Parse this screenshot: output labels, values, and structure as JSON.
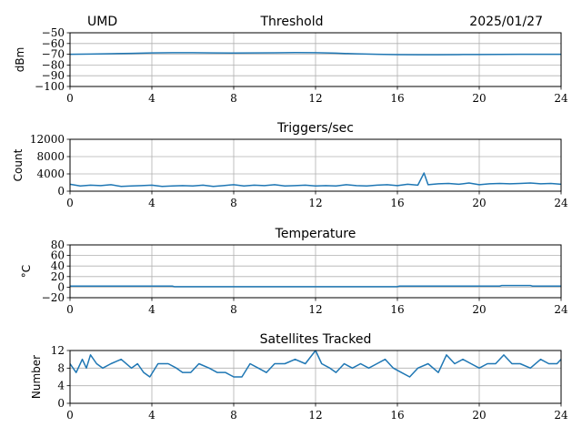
{
  "header": {
    "left": "UMD",
    "center": "Threshold",
    "right": "2025/01/27"
  },
  "colors": {
    "series": "#1f77b4",
    "grid": "#b0b0b0"
  },
  "chart_data": [
    {
      "type": "line",
      "title": "Threshold",
      "ylabel": "dBm",
      "xlim": [
        0,
        24
      ],
      "ylim": [
        -100,
        -50
      ],
      "xticks": [
        0,
        4,
        8,
        12,
        16,
        20,
        24
      ],
      "yticks": [
        -100,
        -90,
        -80,
        -70,
        -60,
        -50
      ],
      "ytick_labels": [
        "−100",
        "−90",
        "−80",
        "−70",
        "−60",
        "−50"
      ],
      "grid": true,
      "series": [
        {
          "x": [
            0,
            1,
            2,
            3,
            4,
            5,
            6,
            7,
            8,
            9,
            10,
            11,
            12,
            13,
            14,
            15,
            16,
            17,
            18,
            19,
            20,
            21,
            22,
            23,
            24
          ],
          "values": [
            -70,
            -69.8,
            -69.5,
            -69.2,
            -68.8,
            -68.5,
            -68.5,
            -68.7,
            -68.9,
            -68.8,
            -68.6,
            -68.4,
            -68.5,
            -69,
            -69.6,
            -70,
            -70.3,
            -70.4,
            -70.4,
            -70.3,
            -70.2,
            -70.1,
            -70,
            -70,
            -70
          ]
        }
      ]
    },
    {
      "type": "line",
      "title": "Triggers/sec",
      "ylabel": "Count",
      "xlim": [
        0,
        24
      ],
      "ylim": [
        0,
        12000
      ],
      "xticks": [
        0,
        4,
        8,
        12,
        16,
        20,
        24
      ],
      "yticks": [
        0,
        4000,
        8000,
        12000
      ],
      "ytick_labels": [
        "0",
        "4000",
        "8000",
        "12000"
      ],
      "grid": true,
      "series": [
        {
          "x": [
            0,
            0.5,
            1,
            1.5,
            2,
            2.5,
            3,
            3.5,
            4,
            4.5,
            5,
            5.5,
            6,
            6.5,
            7,
            7.5,
            8,
            8.5,
            9,
            9.5,
            10,
            10.5,
            11,
            11.5,
            12,
            12.5,
            13,
            13.5,
            14,
            14.5,
            15,
            15.5,
            16,
            16.5,
            17,
            17.3,
            17.5,
            18,
            18.5,
            19,
            19.5,
            20,
            20.5,
            21,
            21.5,
            22,
            22.5,
            23,
            23.5,
            24
          ],
          "values": [
            1600,
            1200,
            1400,
            1300,
            1500,
            1100,
            1200,
            1300,
            1400,
            1100,
            1200,
            1300,
            1200,
            1400,
            1100,
            1300,
            1500,
            1200,
            1400,
            1300,
            1500,
            1200,
            1300,
            1400,
            1200,
            1300,
            1200,
            1500,
            1300,
            1200,
            1400,
            1500,
            1300,
            1600,
            1400,
            4200,
            1500,
            1700,
            1800,
            1600,
            1900,
            1500,
            1700,
            1800,
            1700,
            1800,
            1900,
            1700,
            1800,
            1600
          ]
        }
      ]
    },
    {
      "type": "line",
      "title": "Temperature",
      "ylabel": "°C",
      "xlim": [
        0,
        24
      ],
      "ylim": [
        -20,
        80
      ],
      "xticks": [
        0,
        4,
        8,
        12,
        16,
        20,
        24
      ],
      "yticks": [
        -20,
        0,
        20,
        40,
        60,
        80
      ],
      "ytick_labels": [
        "−20",
        "0",
        "20",
        "40",
        "60",
        "80"
      ],
      "grid": true,
      "series": [
        {
          "x": [
            0,
            2,
            4,
            5,
            5.1,
            8,
            12,
            16,
            16.1,
            20,
            21,
            21.1,
            22.5,
            22.6,
            24
          ],
          "values": [
            2,
            2,
            2,
            2,
            1,
            1,
            1,
            1,
            2,
            2,
            2,
            3,
            3,
            2,
            2
          ]
        }
      ]
    },
    {
      "type": "line",
      "title": "Satellites Tracked",
      "ylabel": "Number",
      "xlim": [
        0,
        24
      ],
      "ylim": [
        0,
        12
      ],
      "xticks": [
        0,
        4,
        8,
        12,
        16,
        20,
        24
      ],
      "yticks": [
        0,
        4,
        8,
        12
      ],
      "ytick_labels": [
        "0",
        "4",
        "8",
        "12"
      ],
      "grid": true,
      "series": [
        {
          "x": [
            0,
            0.3,
            0.6,
            0.8,
            1.0,
            1.3,
            1.6,
            2.0,
            2.5,
            3.0,
            3.3,
            3.6,
            3.9,
            4.3,
            4.8,
            5.2,
            5.5,
            5.9,
            6.3,
            6.8,
            7.2,
            7.6,
            8.0,
            8.4,
            8.8,
            9.2,
            9.6,
            10.0,
            10.5,
            11.0,
            11.5,
            12.0,
            12.3,
            12.7,
            13.0,
            13.4,
            13.8,
            14.2,
            14.6,
            15.0,
            15.4,
            15.8,
            16.2,
            16.6,
            17.0,
            17.5,
            18.0,
            18.4,
            18.8,
            19.2,
            19.6,
            20.0,
            20.4,
            20.8,
            21.2,
            21.6,
            22.0,
            22.5,
            23.0,
            23.4,
            23.8,
            24.0
          ],
          "values": [
            9,
            7,
            10,
            8,
            11,
            9,
            8,
            9,
            10,
            8,
            9,
            7,
            6,
            9,
            9,
            8,
            7,
            7,
            9,
            8,
            7,
            7,
            6,
            6,
            9,
            8,
            7,
            9,
            9,
            10,
            9,
            12,
            9,
            8,
            7,
            9,
            8,
            9,
            8,
            9,
            10,
            8,
            7,
            6,
            8,
            9,
            7,
            11,
            9,
            10,
            9,
            8,
            9,
            9,
            11,
            9,
            9,
            8,
            10,
            9,
            9,
            10
          ]
        }
      ]
    }
  ]
}
